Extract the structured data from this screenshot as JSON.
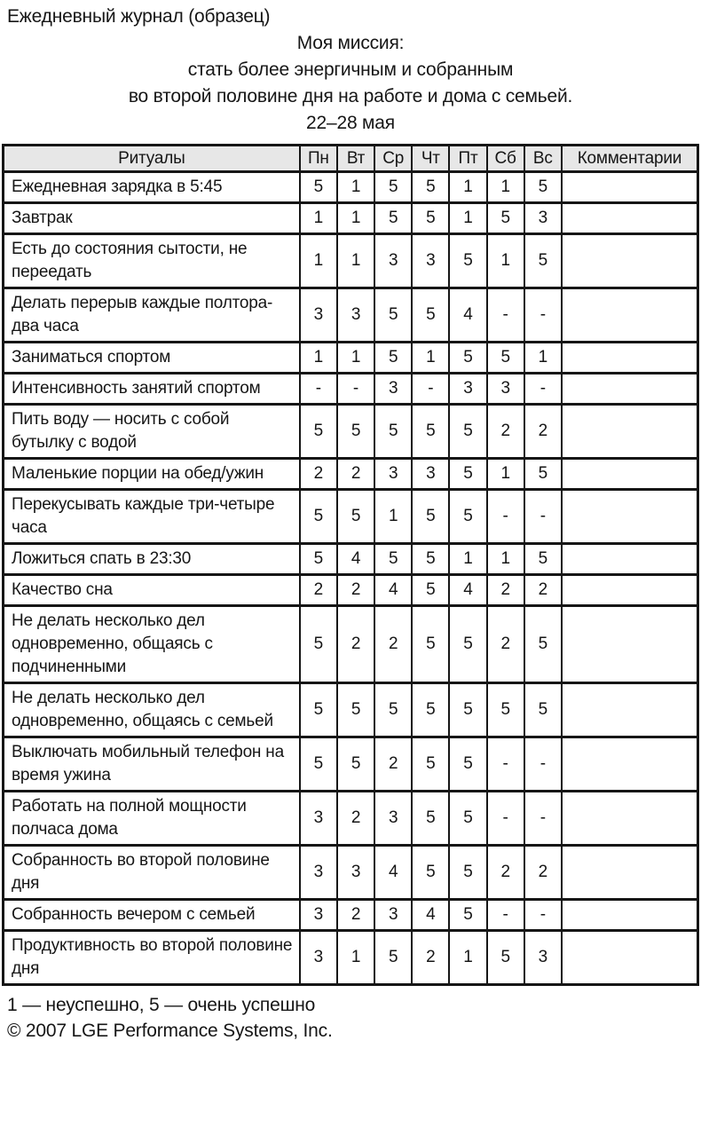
{
  "page": {
    "title": "Ежедневный журнал (образец)",
    "mission_lines": [
      "Моя миссия:",
      "стать более энергичным и собранным",
      "во второй половине дня на работе и дома с семьей.",
      "22–28 мая"
    ],
    "footer": {
      "legend": "1 — неуспешно, 5 — очень успешно",
      "copyright": "© 2007 LGE Performance Systems, Inc."
    }
  },
  "table": {
    "headers": [
      "Ритуалы",
      "Пн",
      "Вт",
      "Ср",
      "Чт",
      "Пт",
      "Сб",
      "Вс",
      "Комментарии"
    ],
    "rows": [
      {
        "ritual": "Ежедневная зарядка в 5:45",
        "values": [
          "5",
          "1",
          "5",
          "5",
          "1",
          "1",
          "5"
        ],
        "comment": ""
      },
      {
        "ritual": "Завтрак",
        "values": [
          "1",
          "1",
          "5",
          "5",
          "1",
          "5",
          "3"
        ],
        "comment": ""
      },
      {
        "ritual": "Есть до состояния сытости, не переедать",
        "values": [
          "1",
          "1",
          "3",
          "3",
          "5",
          "1",
          "5"
        ],
        "comment": ""
      },
      {
        "ritual": "Делать перерыв каждые полтора-два часа",
        "values": [
          "3",
          "3",
          "5",
          "5",
          "4",
          "-",
          "-"
        ],
        "comment": ""
      },
      {
        "ritual": "Заниматься спортом",
        "values": [
          "1",
          "1",
          "5",
          "1",
          "5",
          "5",
          "1"
        ],
        "comment": ""
      },
      {
        "ritual": "Интенсивность занятий спортом",
        "values": [
          "-",
          "-",
          "3",
          "-",
          "3",
          "3",
          "-"
        ],
        "comment": ""
      },
      {
        "ritual": "Пить воду — носить с собой бутылку с водой",
        "values": [
          "5",
          "5",
          "5",
          "5",
          "5",
          "2",
          "2"
        ],
        "comment": ""
      },
      {
        "ritual": "Маленькие порции на обед/ужин",
        "values": [
          "2",
          "2",
          "3",
          "3",
          "5",
          "1",
          "5"
        ],
        "comment": ""
      },
      {
        "ritual": "Перекусывать каждые три-четыре часа",
        "values": [
          "5",
          "5",
          "1",
          "5",
          "5",
          "-",
          "-"
        ],
        "comment": ""
      },
      {
        "ritual": "Ложиться спать в 23:30",
        "values": [
          "5",
          "4",
          "5",
          "5",
          "1",
          "1",
          "5"
        ],
        "comment": ""
      },
      {
        "ritual": "Качество сна",
        "values": [
          "2",
          "2",
          "4",
          "5",
          "4",
          "2",
          "2"
        ],
        "comment": ""
      },
      {
        "ritual": "Не делать несколько дел одновременно, общаясь с подчиненными",
        "values": [
          "5",
          "2",
          "2",
          "5",
          "5",
          "2",
          "5"
        ],
        "comment": ""
      },
      {
        "ritual": "Не делать несколько дел одновременно, общаясь с семьей",
        "values": [
          "5",
          "5",
          "5",
          "5",
          "5",
          "5",
          "5"
        ],
        "comment": ""
      },
      {
        "ritual": "Выключать мобильный телефон на время ужина",
        "values": [
          "5",
          "5",
          "2",
          "5",
          "5",
          "-",
          "-"
        ],
        "comment": ""
      },
      {
        "ritual": "Работать на полной мощности полчаса дома",
        "values": [
          "3",
          "2",
          "3",
          "5",
          "5",
          "-",
          "-"
        ],
        "comment": ""
      },
      {
        "ritual": "Собранность во второй половине дня",
        "values": [
          "3",
          "3",
          "4",
          "5",
          "5",
          "2",
          "2"
        ],
        "comment": ""
      },
      {
        "ritual": "Собранность вечером с семьей",
        "values": [
          "3",
          "2",
          "3",
          "4",
          "5",
          "-",
          "-"
        ],
        "comment": ""
      },
      {
        "ritual": "Продуктивность во второй половине дня",
        "values": [
          "3",
          "1",
          "5",
          "2",
          "1",
          "5",
          "3"
        ],
        "comment": ""
      }
    ]
  }
}
